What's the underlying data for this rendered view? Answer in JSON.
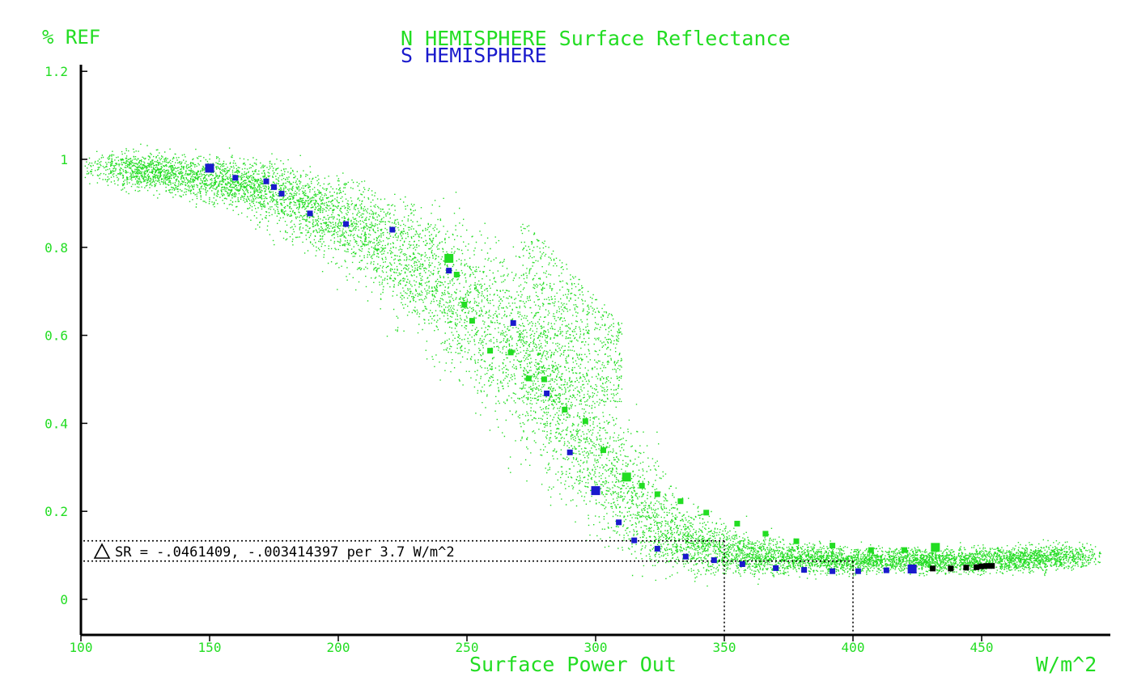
{
  "chart_data": {
    "type": "scatter",
    "title": "N HEMISPHERE Surface Reflectance",
    "title_line2": "S HEMISPHERE",
    "xlabel": "Surface Power Out",
    "ylabel": "% REF",
    "x_unit": "W/m^2",
    "xlim": [
      100,
      500
    ],
    "ylim": [
      -0.08,
      1.22
    ],
    "x_ticks": [
      "100",
      "150",
      "200",
      "250",
      "300",
      "350",
      "400",
      "450"
    ],
    "x_tick_values": [
      100,
      150,
      200,
      250,
      300,
      350,
      400,
      450
    ],
    "y_ticks": [
      "0",
      "0.2",
      "0.4",
      "0.6",
      "0.8",
      "1",
      "1.2"
    ],
    "y_tick_values": [
      0,
      0.2,
      0.4,
      0.6,
      0.8,
      1.0,
      1.2
    ],
    "grid": false,
    "annotation": {
      "text": "SR = -.0461409, -.003414397 per 3.7 W/m^2",
      "upper_y": 0.133,
      "lower_y": 0.087,
      "marker_x1": 350,
      "marker_x2": 400
    },
    "colors": {
      "n_hemisphere": "#22dd22",
      "s_hemisphere": "#1a1acc",
      "overlap": "#000000",
      "axis": "#000000",
      "cloud": "#22dd22"
    },
    "series": [
      {
        "name": "N HEMISPHERE",
        "color": "#22dd22",
        "points": [
          [
            243,
            0.775
          ],
          [
            246,
            0.738
          ],
          [
            249,
            0.67
          ],
          [
            252,
            0.633
          ],
          [
            259,
            0.565
          ],
          [
            267,
            0.561
          ],
          [
            274,
            0.502
          ],
          [
            280,
            0.5
          ],
          [
            288,
            0.431
          ],
          [
            296,
            0.405
          ],
          [
            303,
            0.339
          ],
          [
            312,
            0.278
          ],
          [
            318,
            0.258
          ],
          [
            324,
            0.239
          ],
          [
            333,
            0.223
          ],
          [
            343,
            0.197
          ],
          [
            355,
            0.172
          ],
          [
            366,
            0.149
          ],
          [
            378,
            0.132
          ],
          [
            392,
            0.122
          ],
          [
            407,
            0.112
          ],
          [
            420,
            0.112
          ],
          [
            432,
            0.118
          ]
        ]
      },
      {
        "name": "S HEMISPHERE",
        "color": "#1a1acc",
        "points": [
          [
            150,
            0.98
          ],
          [
            160,
            0.958
          ],
          [
            172,
            0.95
          ],
          [
            175,
            0.937
          ],
          [
            178,
            0.922
          ],
          [
            189,
            0.877
          ],
          [
            203,
            0.853
          ],
          [
            221,
            0.84
          ],
          [
            243,
            0.747
          ],
          [
            268,
            0.628
          ],
          [
            281,
            0.468
          ],
          [
            290,
            0.334
          ],
          [
            300,
            0.247
          ],
          [
            309,
            0.175
          ],
          [
            315,
            0.134
          ],
          [
            324,
            0.115
          ],
          [
            335,
            0.097
          ],
          [
            346,
            0.089
          ],
          [
            357,
            0.08
          ],
          [
            370,
            0.071
          ],
          [
            381,
            0.067
          ],
          [
            392,
            0.064
          ],
          [
            402,
            0.064
          ],
          [
            413,
            0.066
          ],
          [
            423,
            0.069
          ]
        ]
      },
      {
        "name": "",
        "color": "#000000",
        "points": [
          [
            431,
            0.07
          ],
          [
            438,
            0.07
          ],
          [
            444,
            0.072
          ],
          [
            448,
            0.073
          ],
          [
            450,
            0.075
          ],
          [
            452,
            0.076
          ],
          [
            454,
            0.076
          ]
        ]
      }
    ],
    "cloud": {
      "count": 15000,
      "segments": [
        [
          112,
          0.985,
          0.025,
          0.09
        ],
        [
          170,
          0.94,
          0.04,
          0.14
        ],
        [
          210,
          0.84,
          0.07,
          0.11
        ],
        [
          240,
          0.72,
          0.1,
          0.09
        ],
        [
          270,
          0.56,
          0.12,
          0.075
        ],
        [
          300,
          0.32,
          0.09,
          0.085
        ],
        [
          330,
          0.14,
          0.05,
          0.07
        ],
        [
          360,
          0.1,
          0.03,
          0.04
        ],
        [
          400,
          0.09,
          0.02,
          0.03
        ],
        [
          450,
          0.09,
          0.02,
          0.022
        ],
        [
          490,
          0.1,
          0.02,
          0.015
        ]
      ],
      "tail": {
        "x_range": [
          270,
          310
        ],
        "y_range": [
          0.45,
          0.88
        ],
        "count": 900
      }
    }
  }
}
